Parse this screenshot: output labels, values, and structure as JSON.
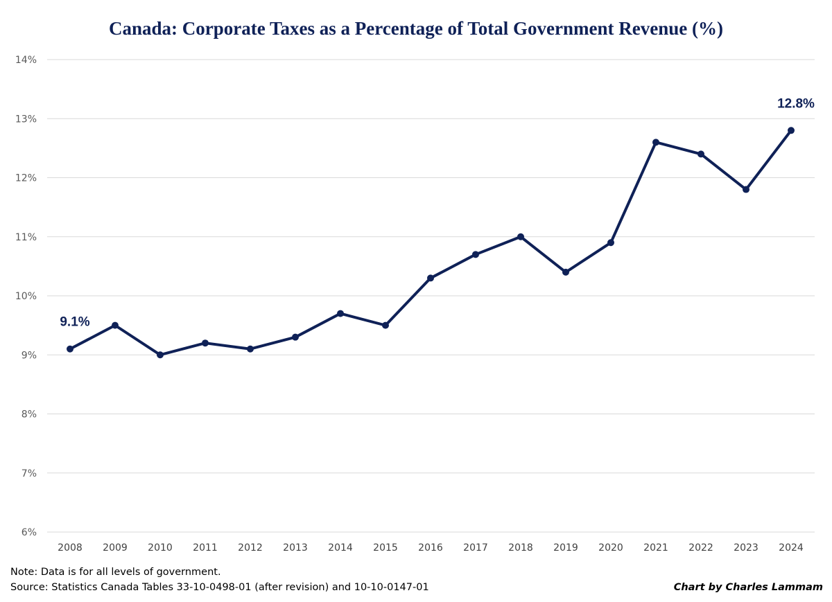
{
  "chart_data": {
    "type": "line",
    "title": "Canada: Corporate Taxes as a Percentage of Total Government Revenue (%)",
    "xlabel": "",
    "ylabel": "",
    "ylim": [
      6,
      14
    ],
    "y_ticks": [
      "6%",
      "7%",
      "8%",
      "9%",
      "10%",
      "11%",
      "12%",
      "13%",
      "14%"
    ],
    "grid": "horizontal",
    "categories": [
      "2008",
      "2009",
      "2010",
      "2011",
      "2012",
      "2013",
      "2014",
      "2015",
      "2016",
      "2017",
      "2018",
      "2019",
      "2020",
      "2021",
      "2022",
      "2023",
      "2024"
    ],
    "series": [
      {
        "values": [
          9.1,
          9.5,
          9.0,
          9.2,
          9.1,
          9.3,
          9.7,
          9.5,
          10.3,
          10.7,
          11.0,
          10.4,
          10.9,
          12.6,
          12.4,
          11.8,
          12.8
        ],
        "color": "#0f2157"
      }
    ],
    "annotations": [
      {
        "category": "2008",
        "text": "9.1%"
      },
      {
        "category": "2024",
        "text": "12.8%"
      }
    ]
  },
  "footer": {
    "note": "Note: Data is for all levels of government.",
    "source": "Source: Statistics Canada Tables 33-10-0498-01 (after revision) and 10-10-0147-01",
    "credit": "Chart by Charles Lammam"
  },
  "colors": {
    "line": "#0f2157",
    "title": "#0f2157",
    "grid": "#d9d9d9",
    "axis_text": "#595959"
  }
}
